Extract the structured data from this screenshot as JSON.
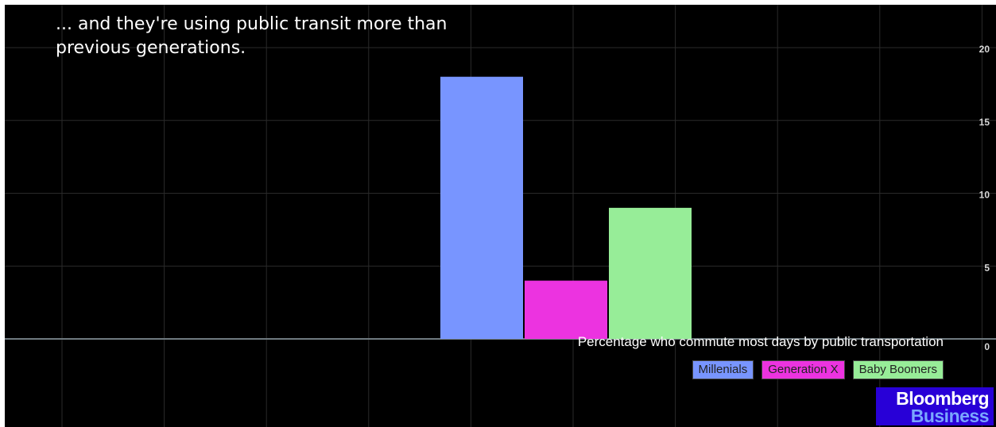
{
  "title": "... and they're using public transit more than previous generations.",
  "caption": "Percentage who commute most days by public transportation",
  "logo": {
    "line1": "Bloomberg",
    "line2": "Business"
  },
  "chart_data": {
    "type": "bar",
    "categories": [
      "Millenials",
      "Generation X",
      "Baby Boomers"
    ],
    "values": [
      18,
      4,
      9
    ],
    "colors": [
      "#7895ff",
      "#ec33e0",
      "#97ed98"
    ],
    "ylim": [
      0,
      20
    ],
    "yticks": [
      0,
      5,
      10,
      15,
      20
    ],
    "grid": true,
    "legend_position": "bottom-right",
    "y_axis_side": "right"
  }
}
